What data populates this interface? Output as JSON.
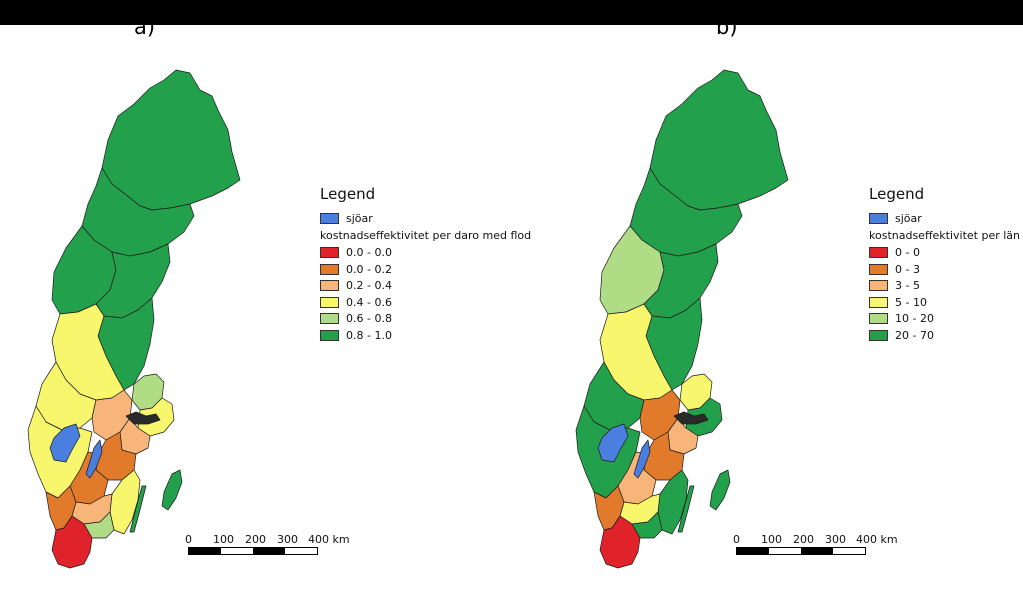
{
  "panels": {
    "a": {
      "label": "a)",
      "legend": {
        "title": "Legend",
        "lakes_label": "sjöar",
        "subtitle": "kostnadseffektivitet per daro med flod",
        "classes": [
          {
            "label": "0.0 - 0.0",
            "color": "#e0232a"
          },
          {
            "label": "0.0 - 0.2",
            "color": "#e27a2c"
          },
          {
            "label": "0.2 - 0.4",
            "color": "#f7b57a"
          },
          {
            "label": "0.4 - 0.6",
            "color": "#f7f66c"
          },
          {
            "label": "0.6 - 0.8",
            "color": "#b1dc86"
          },
          {
            "label": "0.8 - 1.0",
            "color": "#23a04c"
          }
        ]
      }
    },
    "b": {
      "label": "b)",
      "legend": {
        "title": "Legend",
        "lakes_label": "sjöar",
        "subtitle": "kostnadseffektivitet per län",
        "classes": [
          {
            "label": "0 - 0",
            "color": "#e0232a"
          },
          {
            "label": "0 - 3",
            "color": "#e27a2c"
          },
          {
            "label": "3 - 5",
            "color": "#f7b57a"
          },
          {
            "label": "5 - 10",
            "color": "#f7f66c"
          },
          {
            "label": "10 - 20",
            "color": "#b1dc86"
          },
          {
            "label": "20 - 70",
            "color": "#23a04c"
          }
        ]
      }
    }
  },
  "lake_color": "#4a7fe0",
  "scalebar": {
    "ticks": [
      "0",
      "100",
      "200",
      "300"
    ],
    "last_tick": "400 km"
  }
}
